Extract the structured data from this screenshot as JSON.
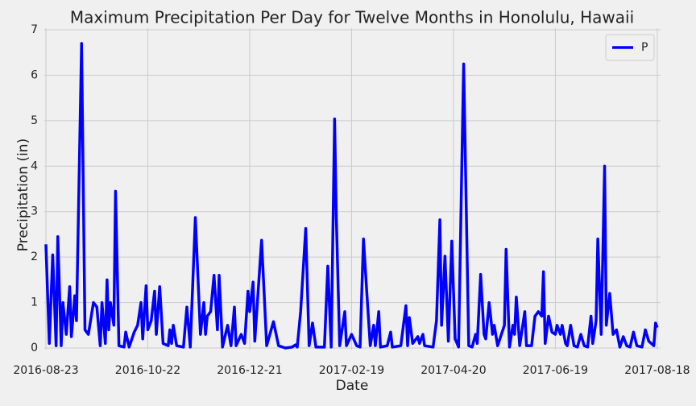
{
  "chart_data": {
    "type": "line",
    "title": "Maximum Precipitation Per Day for Twelve Months in Honolulu, Hawaii",
    "x_label": "Date",
    "y_label": "Precipitation (in)",
    "x": [
      "2016-08-23",
      "2016-08-25",
      "2016-08-27",
      "2016-08-29",
      "2016-08-30",
      "2016-09-01",
      "2016-09-02",
      "2016-09-04",
      "2016-09-06",
      "2016-09-07",
      "2016-09-09",
      "2016-09-10",
      "2016-09-13",
      "2016-09-15",
      "2016-09-17",
      "2016-09-20",
      "2016-09-22",
      "2016-09-24",
      "2016-09-25",
      "2016-09-27",
      "2016-09-28",
      "2016-09-29",
      "2016-09-30",
      "2016-10-02",
      "2016-10-03",
      "2016-10-05",
      "2016-10-08",
      "2016-10-09",
      "2016-10-11",
      "2016-10-14",
      "2016-10-16",
      "2016-10-18",
      "2016-10-19",
      "2016-10-21",
      "2016-10-22",
      "2016-10-24",
      "2016-10-26",
      "2016-10-27",
      "2016-10-29",
      "2016-10-31",
      "2016-11-03",
      "2016-11-04",
      "2016-11-05",
      "2016-11-06",
      "2016-11-08",
      "2016-11-12",
      "2016-11-14",
      "2016-11-16",
      "2016-11-19",
      "2016-11-22",
      "2016-11-24",
      "2016-11-25",
      "2016-11-26",
      "2016-11-28",
      "2016-11-30",
      "2016-12-02",
      "2016-12-03",
      "2016-12-05",
      "2016-12-08",
      "2016-12-10",
      "2016-12-12",
      "2016-12-13",
      "2016-12-16",
      "2016-12-18",
      "2016-12-20",
      "2016-12-21",
      "2016-12-23",
      "2016-12-24",
      "2016-12-28",
      "2016-12-31",
      "2017-01-04",
      "2017-01-07",
      "2017-01-11",
      "2017-01-15",
      "2017-01-17",
      "2017-01-18",
      "2017-01-20",
      "2017-01-23",
      "2017-01-25",
      "2017-01-27",
      "2017-01-29",
      "2017-02-03",
      "2017-02-05",
      "2017-02-07",
      "2017-02-09",
      "2017-02-10",
      "2017-02-12",
      "2017-02-15",
      "2017-02-16",
      "2017-02-19",
      "2017-02-22",
      "2017-02-24",
      "2017-02-26",
      "2017-02-28",
      "2017-03-02",
      "2017-03-04",
      "2017-03-05",
      "2017-03-07",
      "2017-03-08",
      "2017-03-12",
      "2017-03-14",
      "2017-03-15",
      "2017-03-20",
      "2017-03-23",
      "2017-03-24",
      "2017-03-25",
      "2017-03-27",
      "2017-03-30",
      "2017-03-31",
      "2017-04-02",
      "2017-04-03",
      "2017-04-08",
      "2017-04-10",
      "2017-04-12",
      "2017-04-13",
      "2017-04-15",
      "2017-04-17",
      "2017-04-19",
      "2017-04-21",
      "2017-04-23",
      "2017-04-26",
      "2017-04-29",
      "2017-05-01",
      "2017-05-03",
      "2017-05-04",
      "2017-05-06",
      "2017-05-08",
      "2017-05-09",
      "2017-05-11",
      "2017-05-13",
      "2017-05-14",
      "2017-05-16",
      "2017-05-20",
      "2017-05-21",
      "2017-05-23",
      "2017-05-25",
      "2017-05-26",
      "2017-05-27",
      "2017-05-29",
      "2017-06-01",
      "2017-06-02",
      "2017-06-05",
      "2017-06-07",
      "2017-06-09",
      "2017-06-11",
      "2017-06-12",
      "2017-06-13",
      "2017-06-15",
      "2017-06-17",
      "2017-06-19",
      "2017-06-20",
      "2017-06-22",
      "2017-06-23",
      "2017-06-25",
      "2017-06-26",
      "2017-06-28",
      "2017-06-30",
      "2017-07-02",
      "2017-07-04",
      "2017-07-06",
      "2017-07-08",
      "2017-07-10",
      "2017-07-11",
      "2017-07-13",
      "2017-07-14",
      "2017-07-16",
      "2017-07-18",
      "2017-07-19",
      "2017-07-21",
      "2017-07-23",
      "2017-07-25",
      "2017-07-27",
      "2017-07-29",
      "2017-07-31",
      "2017-08-02",
      "2017-08-04",
      "2017-08-06",
      "2017-08-09",
      "2017-08-11",
      "2017-08-13",
      "2017-08-16",
      "2017-08-17",
      "2017-08-18"
    ],
    "series": [
      {
        "name": "P",
        "color": "#0000ff",
        "values": [
          2.28,
          0.1,
          2.05,
          0.05,
          2.45,
          0.05,
          1.0,
          0.3,
          1.35,
          0.25,
          1.15,
          0.6,
          6.7,
          0.4,
          0.3,
          1.0,
          0.9,
          0.05,
          1.0,
          0.1,
          1.5,
          0.4,
          1.0,
          0.5,
          3.45,
          0.05,
          0.02,
          0.35,
          0.02,
          0.35,
          0.5,
          1.0,
          0.2,
          1.37,
          0.4,
          0.6,
          1.25,
          0.3,
          1.35,
          0.1,
          0.05,
          0.4,
          0.1,
          0.5,
          0.05,
          0.02,
          0.9,
          0.02,
          2.87,
          0.3,
          1.0,
          0.3,
          0.7,
          0.8,
          1.6,
          0.4,
          1.6,
          0.02,
          0.5,
          0.05,
          0.9,
          0.05,
          0.3,
          0.1,
          1.25,
          0.8,
          1.45,
          0.15,
          2.37,
          0.05,
          0.58,
          0.05,
          0.0,
          0.02,
          0.07,
          0.02,
          0.8,
          2.63,
          0.05,
          0.55,
          0.02,
          0.02,
          1.8,
          0.02,
          5.04,
          2.9,
          0.05,
          0.8,
          0.05,
          0.3,
          0.05,
          0.02,
          2.4,
          1.2,
          0.05,
          0.5,
          0.05,
          0.8,
          0.02,
          0.05,
          0.35,
          0.02,
          0.05,
          0.93,
          0.05,
          0.67,
          0.1,
          0.25,
          0.1,
          0.3,
          0.05,
          0.02,
          0.6,
          2.82,
          0.5,
          2.02,
          0.15,
          2.35,
          0.2,
          0.02,
          6.25,
          0.05,
          0.02,
          0.3,
          0.1,
          1.62,
          0.3,
          0.2,
          1.0,
          0.3,
          0.5,
          0.05,
          0.5,
          2.17,
          0.02,
          0.5,
          0.3,
          1.12,
          0.05,
          0.8,
          0.05,
          0.05,
          0.7,
          0.8,
          0.7,
          1.68,
          0.1,
          0.7,
          0.35,
          0.3,
          0.5,
          0.3,
          0.5,
          0.1,
          0.05,
          0.5,
          0.05,
          0.02,
          0.3,
          0.05,
          0.02,
          0.7,
          0.1,
          0.6,
          2.4,
          0.3,
          4.0,
          0.5,
          1.2,
          0.3,
          0.4,
          0.02,
          0.25,
          0.05,
          0.02,
          0.35,
          0.05,
          0.02,
          0.4,
          0.15,
          0.05,
          0.55,
          0.45
        ]
      }
    ],
    "xlim": [
      "2016-08-23",
      "2017-08-19"
    ],
    "xticks": [
      "2016-08-23",
      "2016-10-22",
      "2016-12-21",
      "2017-02-19",
      "2017-04-20",
      "2017-06-19",
      "2017-08-18"
    ],
    "ylim": [
      0,
      7
    ],
    "yticks": [
      0,
      1,
      2,
      3,
      4,
      5,
      6,
      7
    ],
    "grid": true,
    "legend": "upper-right"
  }
}
